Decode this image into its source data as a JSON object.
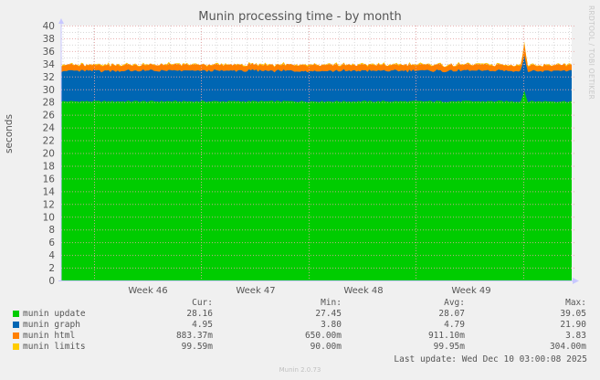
{
  "chart_data": {
    "type": "area",
    "stacked": true,
    "title": "Munin processing time - by month",
    "xlabel": "",
    "ylabel": "seconds",
    "ylim": [
      0,
      40
    ],
    "yticks": [
      0,
      2,
      4,
      6,
      8,
      10,
      12,
      14,
      16,
      18,
      20,
      22,
      24,
      26,
      28,
      30,
      32,
      34,
      36,
      38,
      40
    ],
    "xtick_labels": [
      "Week 46",
      "Week 47",
      "Week 48",
      "Week 49"
    ],
    "grid": true,
    "legend_position": "bottom",
    "series": [
      {
        "name": "munin update",
        "color": "#00cc00",
        "cur": "28.16",
        "min": "27.45",
        "avg": "28.07",
        "max": "39.05",
        "typical_value": 28.1,
        "spike_value": 29.8
      },
      {
        "name": "munin graph",
        "color": "#0066b3",
        "cur": "4.95",
        "min": "3.80",
        "avg": "4.79",
        "max": "21.90",
        "typical_value": 4.8,
        "spike_value": 5.5
      },
      {
        "name": "munin html",
        "color": "#ff8000",
        "cur": "883.37m",
        "min": "650.00m",
        "avg": "911.10m",
        "max": "3.83",
        "typical_value": 0.91,
        "spike_value": 1.9
      },
      {
        "name": "munin limits",
        "color": "#ffcc00",
        "cur": "99.59m",
        "min": "90.00m",
        "avg": "99.95m",
        "max": "304.00m",
        "typical_value": 0.1,
        "spike_value": 0.3
      }
    ]
  },
  "header": {
    "title": "Munin processing time - by month",
    "watermark": "RRDTOOL / TOBI OETIKER"
  },
  "axes": {
    "ylabel": "seconds",
    "yticks": [
      "0",
      "2",
      "4",
      "6",
      "8",
      "10",
      "12",
      "14",
      "16",
      "18",
      "20",
      "22",
      "24",
      "26",
      "28",
      "30",
      "32",
      "34",
      "36",
      "38",
      "40"
    ],
    "xticks": [
      "Week 46",
      "Week 47",
      "Week 48",
      "Week 49"
    ]
  },
  "legend": {
    "headers": {
      "cur": "Cur:",
      "min": "Min:",
      "avg": "Avg:",
      "max": "Max:"
    },
    "rows": [
      {
        "label": "munin update",
        "color": "#00cc00",
        "cur": "28.16",
        "min": "27.45",
        "avg": "28.07",
        "max": "39.05"
      },
      {
        "label": "munin graph",
        "color": "#0066b3",
        "cur": "4.95",
        "min": "3.80",
        "avg": "4.79",
        "max": "21.90"
      },
      {
        "label": "munin html",
        "color": "#ff8000",
        "cur": "883.37m",
        "min": "650.00m",
        "avg": "911.10m",
        "max": "3.83"
      },
      {
        "label": "munin limits",
        "color": "#ffcc00",
        "cur": "99.59m",
        "min": "90.00m",
        "avg": "99.95m",
        "max": "304.00m"
      }
    ],
    "last_update": "Last update: Wed Dec 10 03:00:08 2025"
  },
  "footer": {
    "version": "Munin 2.0.73"
  }
}
